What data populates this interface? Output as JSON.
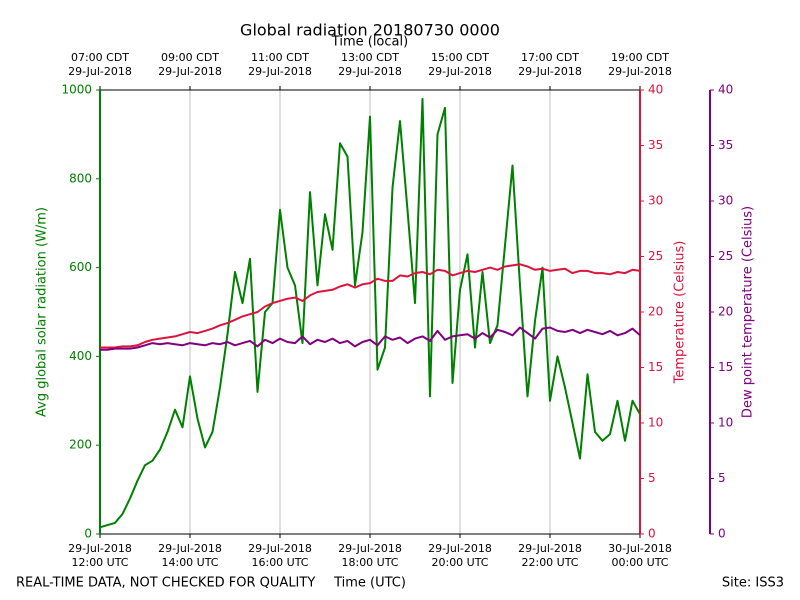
{
  "chart_data": {
    "type": "line",
    "title": "Global radiation 20180730 0000",
    "xlabel": "Time (UTC)",
    "x2label": "Time (local)",
    "ylabel": "Avg global solar radiation (W/m)",
    "y2label": "Temperature (Celsius)",
    "y3label": "Dew point temperature (Celsius)",
    "footer_left": "REAL-TIME DATA, NOT CHECKED FOR QUALITY",
    "footer_right": "Site: ISS3",
    "grid": true,
    "x": [
      "2018-07-29T12:00Z",
      "2018-07-29T12:10Z",
      "2018-07-29T12:20Z",
      "2018-07-29T12:30Z",
      "2018-07-29T12:40Z",
      "2018-07-29T12:50Z",
      "2018-07-29T13:00Z",
      "2018-07-29T13:10Z",
      "2018-07-29T13:20Z",
      "2018-07-29T13:30Z",
      "2018-07-29T13:40Z",
      "2018-07-29T13:50Z",
      "2018-07-29T14:00Z",
      "2018-07-29T14:10Z",
      "2018-07-29T14:20Z",
      "2018-07-29T14:30Z",
      "2018-07-29T14:40Z",
      "2018-07-29T14:50Z",
      "2018-07-29T15:00Z",
      "2018-07-29T15:10Z",
      "2018-07-29T15:20Z",
      "2018-07-29T15:30Z",
      "2018-07-29T15:40Z",
      "2018-07-29T15:50Z",
      "2018-07-29T16:00Z",
      "2018-07-29T16:10Z",
      "2018-07-29T16:20Z",
      "2018-07-29T16:30Z",
      "2018-07-29T16:40Z",
      "2018-07-29T16:50Z",
      "2018-07-29T17:00Z",
      "2018-07-29T17:10Z",
      "2018-07-29T17:20Z",
      "2018-07-29T17:30Z",
      "2018-07-29T17:40Z",
      "2018-07-29T17:50Z",
      "2018-07-29T18:00Z",
      "2018-07-29T18:10Z",
      "2018-07-29T18:20Z",
      "2018-07-29T18:30Z",
      "2018-07-29T18:40Z",
      "2018-07-29T18:50Z",
      "2018-07-29T19:00Z",
      "2018-07-29T19:10Z",
      "2018-07-29T19:20Z",
      "2018-07-29T19:30Z",
      "2018-07-29T19:40Z",
      "2018-07-29T19:50Z",
      "2018-07-29T20:00Z",
      "2018-07-29T20:10Z",
      "2018-07-29T20:20Z",
      "2018-07-29T20:30Z",
      "2018-07-29T20:40Z",
      "2018-07-29T20:50Z",
      "2018-07-29T21:00Z",
      "2018-07-29T21:10Z",
      "2018-07-29T21:20Z",
      "2018-07-29T21:30Z",
      "2018-07-29T21:40Z",
      "2018-07-29T21:50Z",
      "2018-07-29T22:00Z",
      "2018-07-29T22:10Z",
      "2018-07-29T22:20Z",
      "2018-07-29T22:30Z",
      "2018-07-29T22:40Z",
      "2018-07-29T22:50Z",
      "2018-07-29T23:00Z",
      "2018-07-29T23:10Z",
      "2018-07-29T23:20Z",
      "2018-07-29T23:30Z",
      "2018-07-29T23:40Z",
      "2018-07-29T23:50Z",
      "2018-07-30T00:00Z"
    ],
    "xlim": [
      "2018-07-29T12:00Z",
      "2018-07-30T00:00Z"
    ],
    "xticks": [
      {
        "value": "2018-07-29T12:00Z",
        "label": "29-Jul-2018\n12:00 UTC"
      },
      {
        "value": "2018-07-29T14:00Z",
        "label": "29-Jul-2018\n14:00 UTC"
      },
      {
        "value": "2018-07-29T16:00Z",
        "label": "29-Jul-2018\n16:00 UTC"
      },
      {
        "value": "2018-07-29T18:00Z",
        "label": "29-Jul-2018\n18:00 UTC"
      },
      {
        "value": "2018-07-29T20:00Z",
        "label": "29-Jul-2018\n20:00 UTC"
      },
      {
        "value": "2018-07-29T22:00Z",
        "label": "29-Jul-2018\n22:00 UTC"
      },
      {
        "value": "2018-07-30T00:00Z",
        "label": "30-Jul-2018\n00:00 UTC"
      }
    ],
    "x2ticks": [
      {
        "value": "2018-07-29T12:00Z",
        "label": "07:00 CDT\n29-Jul-2018"
      },
      {
        "value": "2018-07-29T14:00Z",
        "label": "09:00 CDT\n29-Jul-2018"
      },
      {
        "value": "2018-07-29T16:00Z",
        "label": "11:00 CDT\n29-Jul-2018"
      },
      {
        "value": "2018-07-29T18:00Z",
        "label": "13:00 CDT\n29-Jul-2018"
      },
      {
        "value": "2018-07-29T20:00Z",
        "label": "15:00 CDT\n29-Jul-2018"
      },
      {
        "value": "2018-07-29T22:00Z",
        "label": "17:00 CDT\n29-Jul-2018"
      },
      {
        "value": "2018-07-30T00:00Z",
        "label": "19:00 CDT\n29-Jul-2018"
      }
    ],
    "ylim": [
      0,
      1000
    ],
    "yticks": [
      0,
      200,
      400,
      600,
      800,
      1000
    ],
    "y2lim": [
      0,
      40
    ],
    "y2ticks": [
      0,
      5,
      10,
      15,
      20,
      25,
      30,
      35,
      40
    ],
    "y3lim": [
      0,
      40
    ],
    "y3ticks": [
      0,
      5,
      10,
      15,
      20,
      25,
      30,
      35,
      40
    ],
    "series": [
      {
        "name": "Avg global solar radiation",
        "color": "#008000",
        "axis": "y",
        "values": [
          15,
          20,
          25,
          45,
          80,
          120,
          155,
          165,
          190,
          230,
          280,
          240,
          355,
          260,
          195,
          230,
          330,
          450,
          590,
          520,
          620,
          320,
          500,
          520,
          730,
          600,
          560,
          430,
          770,
          560,
          720,
          640,
          880,
          850,
          560,
          680,
          940,
          370,
          420,
          780,
          930,
          730,
          520,
          980,
          310,
          900,
          960,
          340,
          550,
          630,
          420,
          590,
          430,
          470,
          650,
          830,
          560,
          310,
          480,
          600,
          300,
          400,
          330,
          250,
          170,
          360,
          230,
          210,
          225,
          300,
          210,
          300,
          270
        ]
      },
      {
        "name": "Temperature",
        "color": "#dc143c",
        "axis": "y2",
        "values": [
          16.8,
          16.8,
          16.8,
          16.9,
          16.9,
          17.0,
          17.3,
          17.5,
          17.6,
          17.7,
          17.8,
          18.0,
          18.2,
          18.1,
          18.3,
          18.5,
          18.8,
          19.0,
          19.3,
          19.6,
          19.8,
          20.0,
          20.5,
          20.8,
          21.0,
          21.2,
          21.3,
          21.0,
          21.5,
          21.8,
          21.9,
          22.0,
          22.3,
          22.5,
          22.2,
          22.5,
          22.6,
          23.0,
          22.8,
          22.8,
          23.3,
          23.2,
          23.5,
          23.6,
          23.4,
          23.8,
          23.7,
          23.3,
          23.5,
          23.7,
          23.6,
          23.8,
          24.0,
          23.8,
          24.1,
          24.2,
          24.3,
          24.1,
          23.8,
          23.9,
          23.7,
          23.8,
          23.9,
          23.5,
          23.7,
          23.7,
          23.5,
          23.5,
          23.4,
          23.6,
          23.5,
          23.8,
          23.7
        ]
      },
      {
        "name": "Dew point temperature",
        "color": "#800080",
        "axis": "y3",
        "values": [
          16.6,
          16.6,
          16.7,
          16.7,
          16.7,
          16.8,
          17.0,
          17.2,
          17.1,
          17.2,
          17.1,
          17.0,
          17.2,
          17.1,
          17.0,
          17.2,
          17.1,
          17.3,
          17.0,
          17.2,
          17.4,
          16.9,
          17.5,
          17.2,
          17.6,
          17.3,
          17.2,
          17.8,
          17.1,
          17.5,
          17.3,
          17.6,
          17.2,
          17.4,
          16.9,
          17.3,
          17.5,
          17.0,
          17.8,
          17.5,
          17.7,
          17.2,
          17.6,
          17.8,
          17.4,
          18.3,
          17.5,
          17.8,
          17.9,
          18.0,
          17.6,
          18.1,
          17.7,
          18.4,
          18.2,
          17.9,
          18.6,
          18.1,
          17.6,
          18.5,
          18.6,
          18.3,
          18.2,
          18.4,
          18.1,
          18.4,
          18.2,
          18.0,
          18.3,
          17.9,
          18.1,
          18.5,
          17.9
        ]
      }
    ]
  }
}
